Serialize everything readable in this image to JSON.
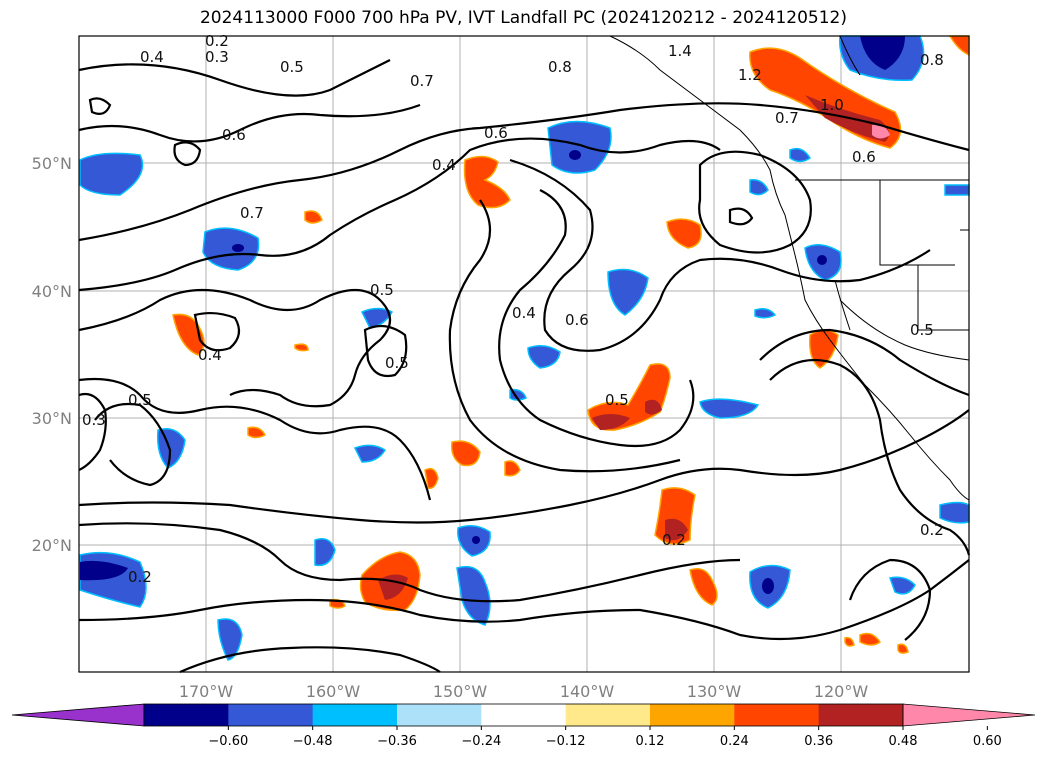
{
  "title": "2024113000 F000 700 hPa PV, IVT Landfall PC (2024120212 - 2024120512)",
  "map": {
    "lat_labels": [
      "50°N",
      "40°N",
      "30°N",
      "20°N"
    ],
    "lon_labels": [
      "170°W",
      "160°W",
      "150°W",
      "140°W",
      "130°W",
      "120°W"
    ],
    "contour_labels": [
      "0.2",
      "0.3",
      "0.4",
      "0.5",
      "0.6",
      "0.7",
      "0.8",
      "1.0",
      "1.2",
      "1.4",
      "0.6",
      "0.4",
      "0.5",
      "0.7",
      "0.5",
      "0.4",
      "0.6",
      "0.5",
      "0.3",
      "0.2",
      "0.4",
      "0.2",
      "0.5",
      "0.8",
      "0.7",
      "0.6",
      "0.5",
      "0.2"
    ]
  },
  "colorbar": {
    "ticks": [
      "−0.60",
      "−0.48",
      "−0.36",
      "−0.24",
      "−0.12",
      "0.12",
      "0.24",
      "0.36",
      "0.48",
      "0.60"
    ],
    "colors": [
      "#9932CC",
      "#00008B",
      "#3458D6",
      "#00BFFF",
      "#ADE1FA",
      "#FFFFFF",
      "#FFE98A",
      "#FFA500",
      "#FF4500",
      "#B22222",
      "#FF88AA"
    ]
  }
}
